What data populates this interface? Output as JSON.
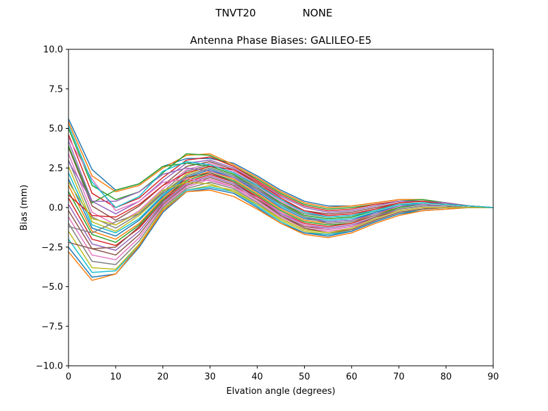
{
  "figure": {
    "suptitle_left": "TNVT20",
    "suptitle_right": "NONE"
  },
  "chart_data": {
    "type": "line",
    "title": "Antenna Phase Biases: GALILEO-E5",
    "xlabel": "Elvation angle (degrees)",
    "ylabel": "Bias (mm)",
    "xlim": [
      0,
      90
    ],
    "ylim": [
      -10,
      10
    ],
    "xticks": [
      0,
      10,
      20,
      30,
      40,
      50,
      60,
      70,
      80,
      90
    ],
    "xtick_labels": [
      "0",
      "10",
      "20",
      "30",
      "40",
      "50",
      "60",
      "70",
      "80",
      "90"
    ],
    "yticks": [
      -10,
      -7.5,
      -5,
      -2.5,
      0,
      2.5,
      5,
      7.5,
      10
    ],
    "ytick_labels": [
      "−10.0",
      "−7.5",
      "−5.0",
      "−2.5",
      "0.0",
      "2.5",
      "5.0",
      "7.5",
      "10.0"
    ],
    "grid": false,
    "legend": "none",
    "colors": [
      "#1f77b4",
      "#ff7f0e",
      "#2ca02c",
      "#d62728",
      "#9467bd",
      "#8c564b",
      "#e377c2",
      "#7f7f7f",
      "#bcbd22",
      "#17becf"
    ],
    "x": [
      0,
      5,
      10,
      15,
      20,
      25,
      30,
      35,
      40,
      45,
      50,
      55,
      60,
      65,
      70,
      75,
      80,
      85,
      90
    ],
    "series": [
      {
        "values": [
          5.6,
          2.4,
          1.1,
          1.5,
          2.6,
          3.1,
          3.1,
          2.8,
          2.0,
          1.1,
          0.4,
          0.1,
          0.1,
          0.3,
          0.5,
          0.5,
          0.3,
          0.1,
          0.0
        ]
      },
      {
        "values": [
          5.4,
          2.0,
          1.0,
          1.4,
          2.5,
          3.3,
          3.4,
          2.7,
          1.9,
          1.0,
          0.3,
          0.0,
          0.1,
          0.3,
          0.5,
          0.5,
          0.3,
          0.1,
          0.0
        ]
      },
      {
        "values": [
          5.0,
          1.4,
          0.5,
          1.0,
          2.2,
          3.4,
          3.3,
          2.6,
          1.8,
          0.9,
          0.2,
          -0.1,
          0.0,
          0.2,
          0.4,
          0.5,
          0.3,
          0.1,
          0.0
        ]
      },
      {
        "values": [
          4.6,
          0.9,
          0.0,
          0.6,
          1.9,
          3.0,
          3.2,
          2.6,
          1.7,
          0.8,
          0.1,
          -0.2,
          -0.1,
          0.2,
          0.4,
          0.4,
          0.3,
          0.1,
          0.0
        ]
      },
      {
        "values": [
          4.2,
          0.4,
          -0.4,
          0.4,
          1.7,
          2.8,
          3.0,
          2.5,
          1.6,
          0.7,
          0.0,
          -0.3,
          -0.2,
          0.1,
          0.4,
          0.4,
          0.3,
          0.1,
          0.0
        ]
      },
      {
        "values": [
          3.8,
          0.1,
          -0.8,
          0.1,
          1.4,
          2.6,
          2.9,
          2.4,
          1.5,
          0.5,
          -0.2,
          -0.4,
          -0.3,
          0.0,
          0.3,
          0.4,
          0.2,
          0.1,
          0.0
        ]
      },
      {
        "values": [
          3.4,
          -0.3,
          -1.1,
          -0.2,
          1.2,
          2.4,
          2.8,
          2.3,
          1.4,
          0.4,
          -0.3,
          -0.5,
          -0.4,
          -0.1,
          0.3,
          0.4,
          0.2,
          0.1,
          0.0
        ]
      },
      {
        "values": [
          3.0,
          -0.6,
          -1.3,
          -0.4,
          1.0,
          2.3,
          2.7,
          2.2,
          1.3,
          0.3,
          -0.4,
          -0.6,
          -0.5,
          -0.1,
          0.2,
          0.3,
          0.2,
          0.1,
          0.0
        ]
      },
      {
        "values": [
          2.6,
          -0.9,
          -1.5,
          -0.5,
          0.9,
          2.1,
          2.6,
          2.1,
          1.2,
          0.2,
          -0.5,
          -0.7,
          -0.6,
          -0.2,
          0.2,
          0.3,
          0.2,
          0.1,
          0.0
        ]
      },
      {
        "values": [
          2.2,
          -1.1,
          -1.6,
          -0.7,
          0.8,
          2.0,
          2.5,
          2.0,
          1.1,
          0.1,
          -0.6,
          -0.8,
          -0.7,
          -0.3,
          0.1,
          0.3,
          0.2,
          0.1,
          0.0
        ]
      },
      {
        "values": [
          1.8,
          -1.3,
          -1.8,
          -0.8,
          0.7,
          1.9,
          2.4,
          1.9,
          1.0,
          0.0,
          -0.7,
          -0.9,
          -0.8,
          -0.3,
          0.1,
          0.2,
          0.1,
          0.0,
          0.0
        ]
      },
      {
        "values": [
          1.4,
          -1.5,
          -2.0,
          -1.0,
          0.6,
          1.8,
          2.3,
          1.8,
          0.9,
          -0.1,
          -0.8,
          -1.0,
          -0.9,
          -0.4,
          0.0,
          0.2,
          0.1,
          0.0,
          0.0
        ]
      },
      {
        "values": [
          1.0,
          -1.7,
          -2.2,
          -1.1,
          0.5,
          1.7,
          2.2,
          1.7,
          0.8,
          -0.2,
          -0.9,
          -1.1,
          -1.0,
          -0.5,
          0.0,
          0.2,
          0.1,
          0.0,
          0.0
        ]
      },
      {
        "values": [
          0.6,
          -2.0,
          -2.4,
          -1.3,
          0.4,
          1.6,
          2.1,
          1.6,
          0.7,
          -0.3,
          -1.0,
          -1.2,
          -1.0,
          -0.5,
          -0.1,
          0.1,
          0.1,
          0.0,
          0.0
        ]
      },
      {
        "values": [
          0.2,
          -2.3,
          -2.7,
          -1.5,
          0.3,
          1.5,
          2.0,
          1.5,
          0.6,
          -0.4,
          -1.1,
          -1.3,
          -1.1,
          -0.6,
          -0.1,
          0.1,
          0.1,
          0.0,
          0.0
        ]
      },
      {
        "values": [
          -0.2,
          -2.6,
          -3.0,
          -1.7,
          0.2,
          1.4,
          1.9,
          1.4,
          0.5,
          -0.5,
          -1.2,
          -1.4,
          -1.2,
          -0.6,
          -0.2,
          0.0,
          0.0,
          0.0,
          0.0
        ]
      },
      {
        "values": [
          -0.6,
          -3.0,
          -3.3,
          -1.9,
          0.1,
          1.3,
          1.8,
          1.3,
          0.4,
          -0.6,
          -1.3,
          -1.5,
          -1.3,
          -0.7,
          -0.2,
          0.0,
          0.0,
          0.0,
          0.0
        ]
      },
      {
        "values": [
          -1.0,
          -3.4,
          -3.6,
          -2.1,
          0.0,
          1.2,
          1.6,
          1.2,
          0.3,
          -0.7,
          -1.4,
          -1.6,
          -1.4,
          -0.8,
          -0.3,
          -0.1,
          0.0,
          0.0,
          0.0
        ]
      },
      {
        "values": [
          -1.5,
          -3.8,
          -3.9,
          -2.3,
          -0.1,
          1.1,
          1.4,
          1.1,
          0.2,
          -0.8,
          -1.5,
          -1.7,
          -1.4,
          -0.8,
          -0.3,
          -0.1,
          0.0,
          0.0,
          0.0
        ]
      },
      {
        "values": [
          -2.0,
          -4.1,
          -4.0,
          -2.4,
          -0.2,
          1.1,
          1.3,
          1.0,
          0.1,
          -0.9,
          -1.6,
          -1.7,
          -1.5,
          -0.9,
          -0.4,
          -0.1,
          0.0,
          0.0,
          0.0
        ]
      },
      {
        "values": [
          -2.5,
          -4.4,
          -4.2,
          -2.5,
          -0.3,
          1.0,
          1.2,
          0.9,
          0.0,
          -1.0,
          -1.6,
          -1.8,
          -1.5,
          -0.9,
          -0.4,
          -0.2,
          -0.1,
          0.0,
          0.0
        ]
      },
      {
        "values": [
          -2.8,
          -4.6,
          -4.2,
          -2.4,
          -0.2,
          1.0,
          1.1,
          0.7,
          -0.1,
          -1.0,
          -1.7,
          -1.9,
          -1.6,
          -1.0,
          -0.5,
          -0.2,
          -0.1,
          0.0,
          0.0
        ]
      },
      {
        "values": [
          3.9,
          0.3,
          1.1,
          1.5,
          2.6,
          2.8,
          2.6,
          2.1,
          1.2,
          0.3,
          -0.5,
          -0.7,
          -0.6,
          -0.2,
          0.2,
          0.3,
          0.2,
          0.1,
          0.0
        ]
      },
      {
        "values": [
          0.8,
          -0.5,
          -0.6,
          0.2,
          1.4,
          2.2,
          2.6,
          2.4,
          1.6,
          0.6,
          -0.2,
          -0.5,
          -0.4,
          -0.1,
          0.3,
          0.4,
          0.2,
          0.1,
          0.0
        ]
      },
      {
        "values": [
          2.9,
          0.4,
          0.4,
          1.0,
          2.1,
          2.5,
          2.3,
          1.9,
          1.1,
          0.2,
          -0.6,
          -0.9,
          -0.8,
          -0.4,
          0.1,
          0.2,
          0.1,
          0.0,
          0.0
        ]
      },
      {
        "values": [
          -2.2,
          -2.6,
          -2.5,
          -1.2,
          0.4,
          1.9,
          2.2,
          1.6,
          0.6,
          -0.5,
          -1.3,
          -1.6,
          -1.4,
          -0.8,
          -0.3,
          -0.1,
          0.0,
          0.0,
          0.0
        ]
      },
      {
        "values": [
          4.4,
          1.8,
          -0.2,
          0.4,
          1.6,
          1.8,
          1.7,
          1.3,
          0.6,
          -0.3,
          -1.1,
          -1.4,
          -1.2,
          -0.7,
          -0.2,
          0.0,
          0.0,
          0.0,
          0.0
        ]
      },
      {
        "values": [
          -1.2,
          -1.6,
          -0.9,
          -0.4,
          0.9,
          2.0,
          2.5,
          2.0,
          1.2,
          0.2,
          -0.6,
          -1.0,
          -0.9,
          -0.5,
          -0.1,
          0.1,
          0.1,
          0.0,
          0.0
        ]
      },
      {
        "values": [
          1.6,
          -0.7,
          -1.1,
          -0.3,
          1.1,
          1.6,
          1.5,
          1.0,
          0.2,
          -0.7,
          -1.4,
          -1.6,
          -1.3,
          -0.7,
          -0.2,
          0.0,
          0.0,
          0.0,
          0.0
        ]
      },
      {
        "values": [
          5.2,
          1.6,
          0.0,
          0.7,
          2.3,
          2.9,
          2.7,
          2.2,
          1.4,
          0.5,
          -0.3,
          -0.6,
          -0.5,
          -0.2,
          0.2,
          0.3,
          0.2,
          0.1,
          0.0
        ]
      }
    ]
  }
}
